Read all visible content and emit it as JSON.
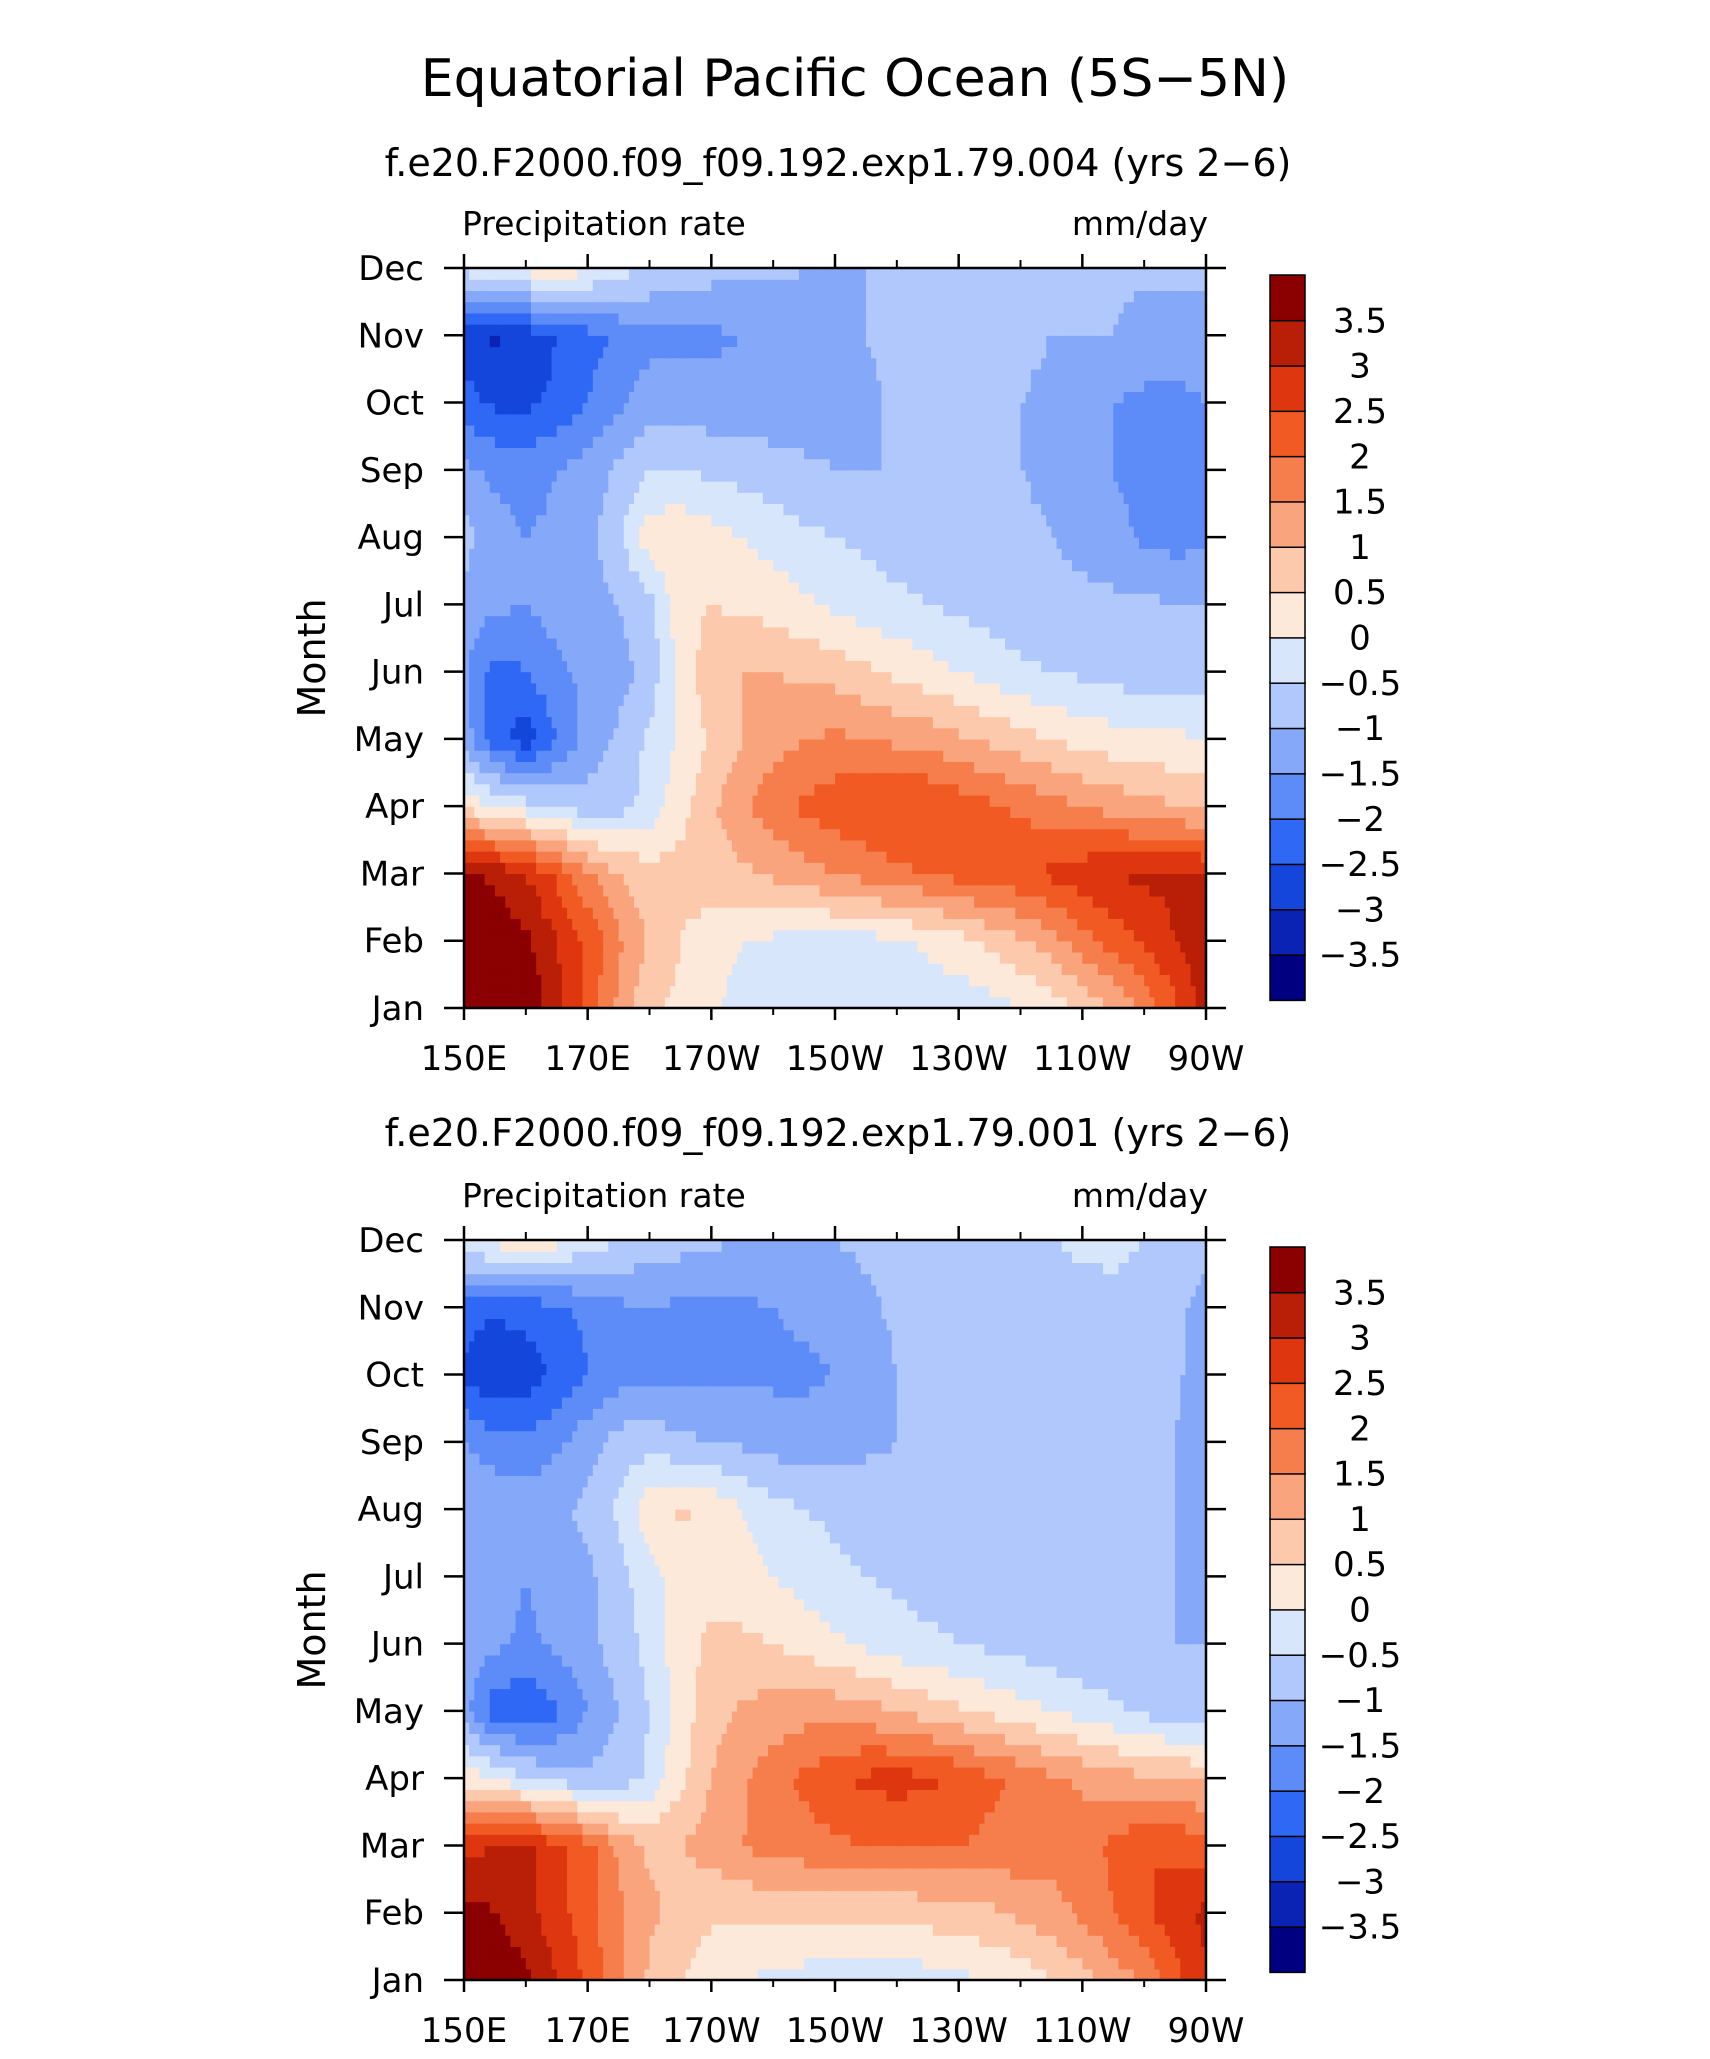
{
  "title": "Equatorial Pacific Ocean (5S−5N)",
  "panels": [
    {
      "subtitle": "f.e20.F2000.f09_f09.192.exp1.79.004 (yrs 2−6)",
      "left_label": "Precipitation rate",
      "right_label": "mm/day"
    },
    {
      "subtitle": "f.e20.F2000.f09_f09.192.exp1.79.001 (yrs 2−6)",
      "left_label": "Precipitation rate",
      "right_label": "mm/day"
    }
  ],
  "chart_data": [
    {
      "type": "heatmap",
      "ylabel": "Month",
      "xlabel": "",
      "x_ticks": [
        "150E",
        "170E",
        "170W",
        "150W",
        "130W",
        "110W",
        "90W"
      ],
      "x_tick_lon": [
        150,
        170,
        190,
        210,
        230,
        250,
        270
      ],
      "y_ticks": [
        "Jan",
        "Feb",
        "Mar",
        "Apr",
        "May",
        "Jun",
        "Jul",
        "Aug",
        "Sep",
        "Oct",
        "Nov",
        "Dec"
      ],
      "xlim": [
        150,
        270
      ],
      "ylim": [
        1,
        12
      ],
      "colorbar": {
        "levels": [
          -4,
          -3.5,
          -3,
          -2.5,
          -2,
          -1.5,
          -1,
          -0.5,
          0,
          0.5,
          1,
          1.5,
          2,
          2.5,
          3,
          3.5,
          4
        ],
        "labels": [
          "3.5",
          "3",
          "2.5",
          "2",
          "1.5",
          "1",
          "0.5",
          "0",
          "−0.5",
          "−1",
          "−1.5",
          "−2",
          "−2.5",
          "−3",
          "−3.5"
        ],
        "colors": [
          "#000080",
          "#0a23b4",
          "#1446dc",
          "#2e68f4",
          "#5d8cf8",
          "#85a8f9",
          "#b0c8fb",
          "#d8e6fc",
          "#fde9da",
          "#fcc9ad",
          "#f9a47c",
          "#f67d4c",
          "#f15a22",
          "#de3710",
          "#b81f06",
          "#8b0000"
        ]
      },
      "x": [
        150,
        155,
        160,
        165,
        170,
        175,
        180,
        185,
        190,
        195,
        200,
        205,
        210,
        215,
        220,
        225,
        230,
        235,
        240,
        245,
        250,
        255,
        260,
        265,
        270
      ],
      "y": [
        "Jan",
        "Feb",
        "Mar",
        "Apr",
        "May",
        "Jun",
        "Jul",
        "Aug",
        "Sep",
        "Oct",
        "Nov",
        "Dec"
      ],
      "z": [
        [
          4.0,
          4.0,
          3.9,
          3.2,
          2.3,
          1.4,
          0.6,
          0.4,
          0.1,
          -0.2,
          -0.3,
          -0.3,
          -0.3,
          -0.3,
          -0.3,
          -0.3,
          -0.3,
          -0.2,
          0.0,
          0.2,
          0.6,
          1.0,
          1.6,
          2.4,
          3.2
        ],
        [
          4.0,
          3.9,
          3.6,
          3.0,
          2.4,
          1.6,
          0.9,
          0.5,
          0.2,
          0.0,
          -0.1,
          -0.2,
          -0.2,
          -0.2,
          -0.1,
          0.1,
          0.3,
          0.6,
          0.9,
          1.3,
          1.8,
          2.2,
          2.6,
          3.0,
          3.4
        ],
        [
          3.6,
          3.4,
          3.0,
          2.4,
          1.6,
          1.0,
          0.7,
          0.7,
          0.8,
          0.9,
          1.1,
          1.3,
          1.5,
          1.7,
          1.9,
          2.0,
          2.2,
          2.3,
          2.4,
          2.6,
          2.8,
          3.0,
          3.1,
          3.1,
          3.0
        ],
        [
          0.3,
          0.0,
          -0.3,
          -0.6,
          -0.8,
          -0.7,
          -0.3,
          0.3,
          0.9,
          1.4,
          1.8,
          2.1,
          2.3,
          2.4,
          2.5,
          2.5,
          2.3,
          2.1,
          1.9,
          1.7,
          1.5,
          1.3,
          1.2,
          1.0,
          0.9
        ],
        [
          -1.2,
          -2.3,
          -2.8,
          -2.0,
          -1.3,
          -0.9,
          -0.4,
          0.1,
          0.6,
          1.0,
          1.3,
          1.5,
          1.6,
          1.5,
          1.4,
          1.3,
          1.1,
          0.9,
          0.7,
          0.5,
          0.3,
          0.2,
          0.1,
          0.1,
          0.0
        ],
        [
          -1.4,
          -2.2,
          -2.0,
          -1.6,
          -1.4,
          -1.2,
          -0.8,
          0.2,
          0.8,
          1.0,
          1.0,
          0.9,
          0.8,
          0.6,
          0.4,
          0.2,
          0.0,
          -0.2,
          -0.4,
          -0.5,
          -0.6,
          -0.7,
          -0.8,
          -0.8,
          -0.8
        ],
        [
          -1.2,
          -1.4,
          -1.5,
          -1.3,
          -1.2,
          -1.0,
          -0.7,
          0.3,
          0.5,
          0.4,
          0.3,
          0.1,
          -0.1,
          -0.3,
          -0.4,
          -0.5,
          -0.6,
          -0.7,
          -0.8,
          -0.9,
          -0.9,
          -0.9,
          -0.9,
          -1.0,
          -1.0
        ],
        [
          -0.8,
          -1.3,
          -1.5,
          -1.4,
          -1.2,
          -0.6,
          0.3,
          0.4,
          0.2,
          0.0,
          -0.2,
          -0.4,
          -0.5,
          -0.6,
          -0.7,
          -0.8,
          -0.8,
          -0.9,
          -0.9,
          -1.0,
          -1.1,
          -1.3,
          -1.6,
          -1.7,
          -1.6
        ],
        [
          -1.4,
          -1.6,
          -1.7,
          -1.5,
          -1.3,
          -0.9,
          -0.5,
          -0.5,
          -0.6,
          -0.7,
          -0.8,
          -0.9,
          -1.0,
          -1.0,
          -1.0,
          -0.9,
          -0.9,
          -1.0,
          -1.0,
          -1.1,
          -1.2,
          -1.5,
          -1.7,
          -1.7,
          -1.6
        ],
        [
          -2.3,
          -2.6,
          -2.6,
          -2.4,
          -2.0,
          -1.6,
          -1.2,
          -1.2,
          -1.3,
          -1.3,
          -1.3,
          -1.3,
          -1.2,
          -1.1,
          -0.9,
          -0.9,
          -0.9,
          -0.9,
          -1.0,
          -1.1,
          -1.2,
          -1.5,
          -1.6,
          -1.6,
          -1.5
        ],
        [
          -2.8,
          -3.1,
          -2.8,
          -2.5,
          -2.2,
          -1.9,
          -1.7,
          -1.6,
          -1.6,
          -1.5,
          -1.4,
          -1.2,
          -1.1,
          -1.0,
          -0.9,
          -0.9,
          -0.9,
          -0.9,
          -0.9,
          -1.0,
          -1.0,
          -1.0,
          -1.2,
          -1.3,
          -1.3
        ],
        [
          -0.3,
          -0.2,
          0.2,
          0.4,
          0.1,
          -0.3,
          -0.5,
          -0.7,
          -0.8,
          -0.9,
          -0.9,
          -1.0,
          -1.0,
          -1.0,
          -0.9,
          -0.9,
          -0.9,
          -0.9,
          -0.9,
          -0.9,
          -0.9,
          -0.9,
          -0.9,
          -0.9,
          -0.9
        ]
      ]
    },
    {
      "type": "heatmap",
      "ylabel": "Month",
      "xlabel": "",
      "x_ticks": [
        "150E",
        "170E",
        "170W",
        "150W",
        "130W",
        "110W",
        "90W"
      ],
      "x_tick_lon": [
        150,
        170,
        190,
        210,
        230,
        250,
        270
      ],
      "y_ticks": [
        "Jan",
        "Feb",
        "Mar",
        "Apr",
        "May",
        "Jun",
        "Jul",
        "Aug",
        "Sep",
        "Oct",
        "Nov",
        "Dec"
      ],
      "xlim": [
        150,
        270
      ],
      "ylim": [
        1,
        12
      ],
      "colorbar": {
        "levels": [
          -4,
          -3.5,
          -3,
          -2.5,
          -2,
          -1.5,
          -1,
          -0.5,
          0,
          0.5,
          1,
          1.5,
          2,
          2.5,
          3,
          3.5,
          4
        ],
        "labels": [
          "3.5",
          "3",
          "2.5",
          "2",
          "1.5",
          "1",
          "0.5",
          "0",
          "−0.5",
          "−1",
          "−1.5",
          "−2",
          "−2.5",
          "−3",
          "−3.5"
        ],
        "colors": [
          "#000080",
          "#0a23b4",
          "#1446dc",
          "#2e68f4",
          "#5d8cf8",
          "#85a8f9",
          "#b0c8fb",
          "#d8e6fc",
          "#fde9da",
          "#fcc9ad",
          "#f9a47c",
          "#f67d4c",
          "#f15a22",
          "#de3710",
          "#b81f06",
          "#8b0000"
        ]
      },
      "x": [
        150,
        155,
        160,
        165,
        170,
        175,
        180,
        185,
        190,
        195,
        200,
        205,
        210,
        215,
        220,
        225,
        230,
        235,
        240,
        245,
        250,
        255,
        260,
        265,
        270
      ],
      "y": [
        "Jan",
        "Feb",
        "Mar",
        "Apr",
        "May",
        "Jun",
        "Jul",
        "Aug",
        "Sep",
        "Oct",
        "Nov",
        "Dec"
      ],
      "z": [
        [
          4.0,
          3.9,
          3.6,
          3.0,
          2.4,
          1.6,
          0.9,
          0.5,
          0.2,
          0.0,
          -0.1,
          -0.2,
          -0.2,
          -0.3,
          -0.3,
          -0.2,
          -0.1,
          0.0,
          0.2,
          0.5,
          0.8,
          1.2,
          1.6,
          2.3,
          3.0
        ],
        [
          3.7,
          3.5,
          3.2,
          2.7,
          2.2,
          1.6,
          1.1,
          0.8,
          0.6,
          0.6,
          0.6,
          0.6,
          0.6,
          0.6,
          0.6,
          0.7,
          0.8,
          0.9,
          1.1,
          1.3,
          1.6,
          2.0,
          2.4,
          2.8,
          3.1
        ],
        [
          2.8,
          3.0,
          3.2,
          2.6,
          2.2,
          1.4,
          0.9,
          1.0,
          1.2,
          1.5,
          1.7,
          1.8,
          1.9,
          2.0,
          2.0,
          2.0,
          2.0,
          1.9,
          1.8,
          1.7,
          1.8,
          2.1,
          2.5,
          2.4,
          2.2
        ],
        [
          0.3,
          0.0,
          -0.5,
          -0.7,
          -0.9,
          -0.8,
          -0.4,
          0.4,
          1.0,
          1.4,
          1.8,
          2.1,
          2.4,
          2.6,
          2.7,
          2.6,
          2.4,
          2.1,
          1.9,
          1.6,
          1.4,
          1.2,
          1.1,
          1.0,
          0.9
        ],
        [
          -1.3,
          -2.3,
          -2.4,
          -2.1,
          -1.5,
          -1.0,
          -0.5,
          0.2,
          0.8,
          1.1,
          1.2,
          1.3,
          1.3,
          1.2,
          1.0,
          0.8,
          0.6,
          0.4,
          0.2,
          0.0,
          -0.2,
          -0.4,
          -0.6,
          -0.8,
          -0.9
        ],
        [
          -1.2,
          -1.4,
          -1.6,
          -1.4,
          -1.1,
          -0.8,
          -0.3,
          0.3,
          0.6,
          0.6,
          0.5,
          0.3,
          0.1,
          -0.1,
          -0.3,
          -0.4,
          -0.5,
          -0.6,
          -0.7,
          -0.8,
          -0.9,
          -0.9,
          -1.0,
          -1.0,
          -1.0
        ],
        [
          -1.2,
          -1.3,
          -1.5,
          -1.3,
          -1.1,
          -0.7,
          -0.2,
          0.2,
          0.3,
          0.2,
          0.0,
          -0.2,
          -0.4,
          -0.5,
          -0.6,
          -0.7,
          -0.8,
          -0.9,
          -0.9,
          -1.0,
          -1.0,
          -1.0,
          -1.0,
          -1.0,
          -1.3
        ],
        [
          -1.0,
          -1.1,
          -1.2,
          -1.1,
          -0.9,
          -0.4,
          0.3,
          0.6,
          0.4,
          0.0,
          -0.3,
          -0.5,
          -0.6,
          -0.7,
          -0.8,
          -0.9,
          -0.9,
          -1.0,
          -1.0,
          -1.0,
          -1.0,
          -1.0,
          -1.0,
          -1.0,
          -1.4
        ],
        [
          -1.5,
          -1.8,
          -1.9,
          -1.6,
          -1.2,
          -0.8,
          -0.7,
          -0.9,
          -1.0,
          -1.1,
          -1.2,
          -1.3,
          -1.2,
          -1.1,
          -1.0,
          -1.0,
          -1.0,
          -1.0,
          -1.0,
          -1.0,
          -1.0,
          -1.0,
          -1.0,
          -1.0,
          -1.4
        ],
        [
          -2.6,
          -3.0,
          -2.8,
          -2.4,
          -2.0,
          -1.7,
          -1.6,
          -1.6,
          -1.6,
          -1.6,
          -1.6,
          -1.6,
          -1.5,
          -1.3,
          -1.0,
          -0.9,
          -0.9,
          -0.9,
          -0.9,
          -0.9,
          -0.9,
          -0.9,
          -0.9,
          -0.9,
          -1.3
        ],
        [
          -2.3,
          -2.4,
          -2.3,
          -2.1,
          -1.9,
          -1.6,
          -1.5,
          -1.6,
          -1.7,
          -1.6,
          -1.5,
          -1.4,
          -1.3,
          -1.1,
          -0.9,
          -0.9,
          -0.9,
          -0.9,
          -0.9,
          -0.8,
          -0.7,
          -0.6,
          -0.7,
          -0.9,
          -1.2
        ],
        [
          0.0,
          0.2,
          0.4,
          0.2,
          -0.2,
          -0.5,
          -0.7,
          -0.8,
          -0.9,
          -1.0,
          -1.0,
          -1.0,
          -1.0,
          -0.9,
          -0.8,
          -0.7,
          -0.7,
          -0.7,
          -0.6,
          -0.5,
          -0.4,
          -0.4,
          -0.5,
          -0.6,
          -0.8
        ]
      ]
    }
  ]
}
